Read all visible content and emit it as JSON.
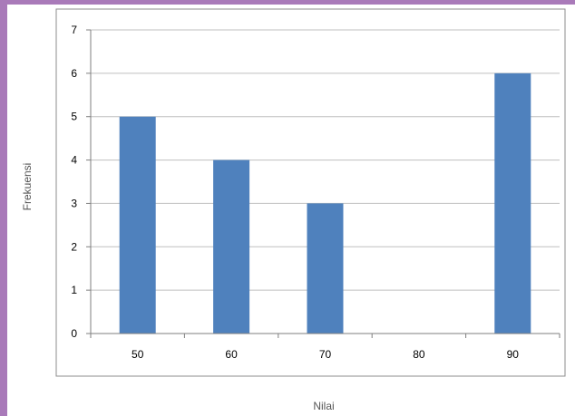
{
  "colors": {
    "frame": "#a97ab9",
    "bar": "#4f81bd",
    "grid": "#bfbfbf",
    "axis": "#7f7f7f"
  },
  "chart_data": {
    "type": "bar",
    "categories": [
      "50",
      "60",
      "70",
      "80",
      "90"
    ],
    "values": [
      5,
      4,
      3,
      0,
      6
    ],
    "yticks": [
      "0",
      "1",
      "2",
      "3",
      "4",
      "5",
      "6",
      "7"
    ],
    "title": "",
    "xlabel": "Nilai",
    "ylabel": "Frekuensi",
    "ylim": [
      0,
      7
    ],
    "grid": true,
    "legend": "none"
  }
}
